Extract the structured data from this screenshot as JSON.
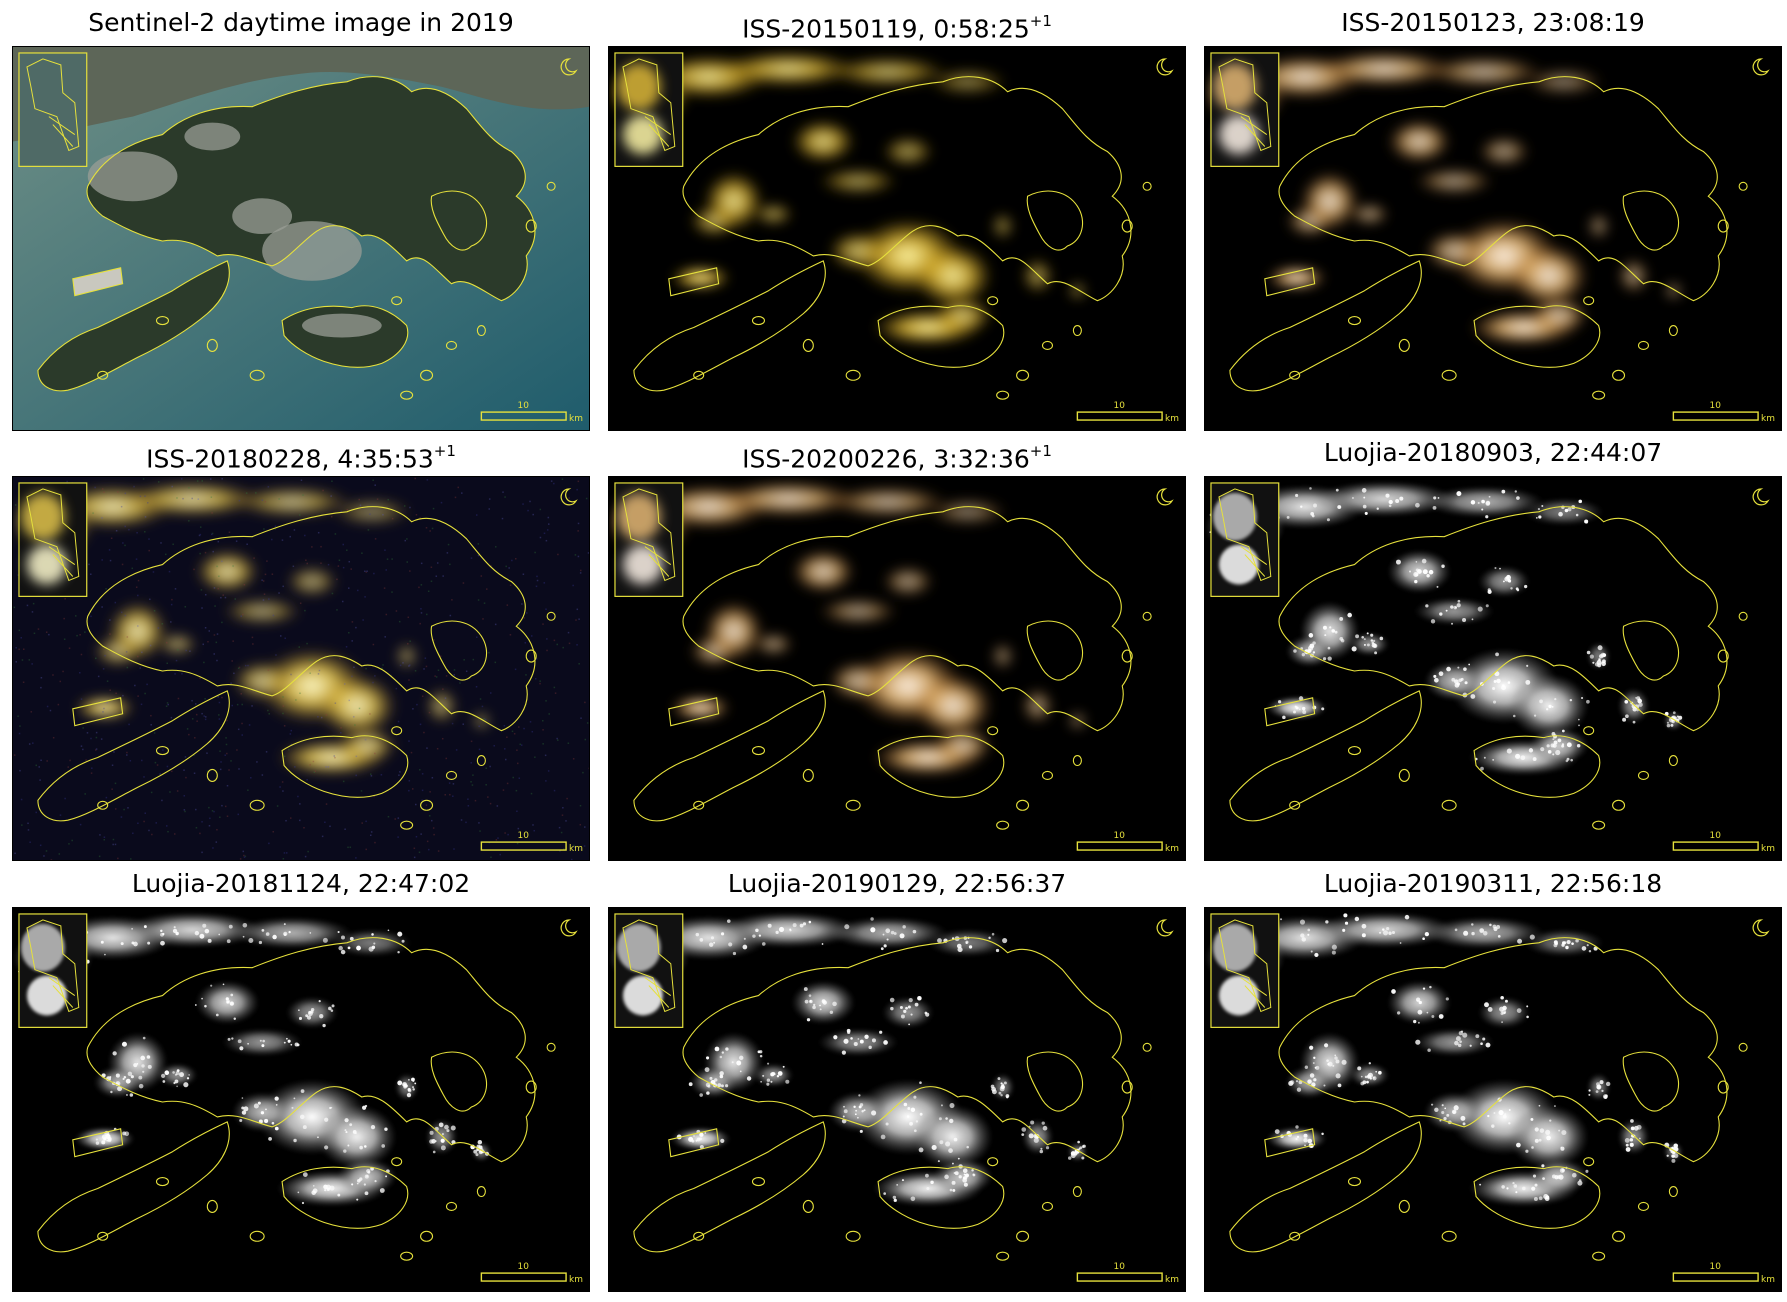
{
  "panels": [
    {
      "title": "Sentinel-2 daytime image in 2019",
      "superscript": "",
      "mode": "day"
    },
    {
      "title": "ISS-20150119, 0:58:25",
      "superscript": "+1",
      "mode": "iss-yellow"
    },
    {
      "title": "ISS-20150123, 23:08:19",
      "superscript": "",
      "mode": "iss-warm"
    },
    {
      "title": "ISS-20180228, 4:35:53",
      "superscript": "+1",
      "mode": "iss-noisy"
    },
    {
      "title": "ISS-20200226, 3:32:36",
      "superscript": "+1",
      "mode": "iss-warm"
    },
    {
      "title": "Luojia-20180903, 22:44:07",
      "superscript": "",
      "mode": "luojia"
    },
    {
      "title": "Luojia-20181124, 22:47:02",
      "superscript": "",
      "mode": "luojia"
    },
    {
      "title": "Luojia-20190129, 22:56:37",
      "superscript": "",
      "mode": "luojia"
    },
    {
      "title": "Luojia-20190311, 22:56:18",
      "superscript": "",
      "mode": "luojia"
    }
  ],
  "scalebar": {
    "value": "10",
    "unit": "km"
  },
  "colors": {
    "outline": "#e6e13c",
    "day_sea": "#3d7377",
    "day_land": "#2b3a2a",
    "night_bg": "#000000"
  }
}
